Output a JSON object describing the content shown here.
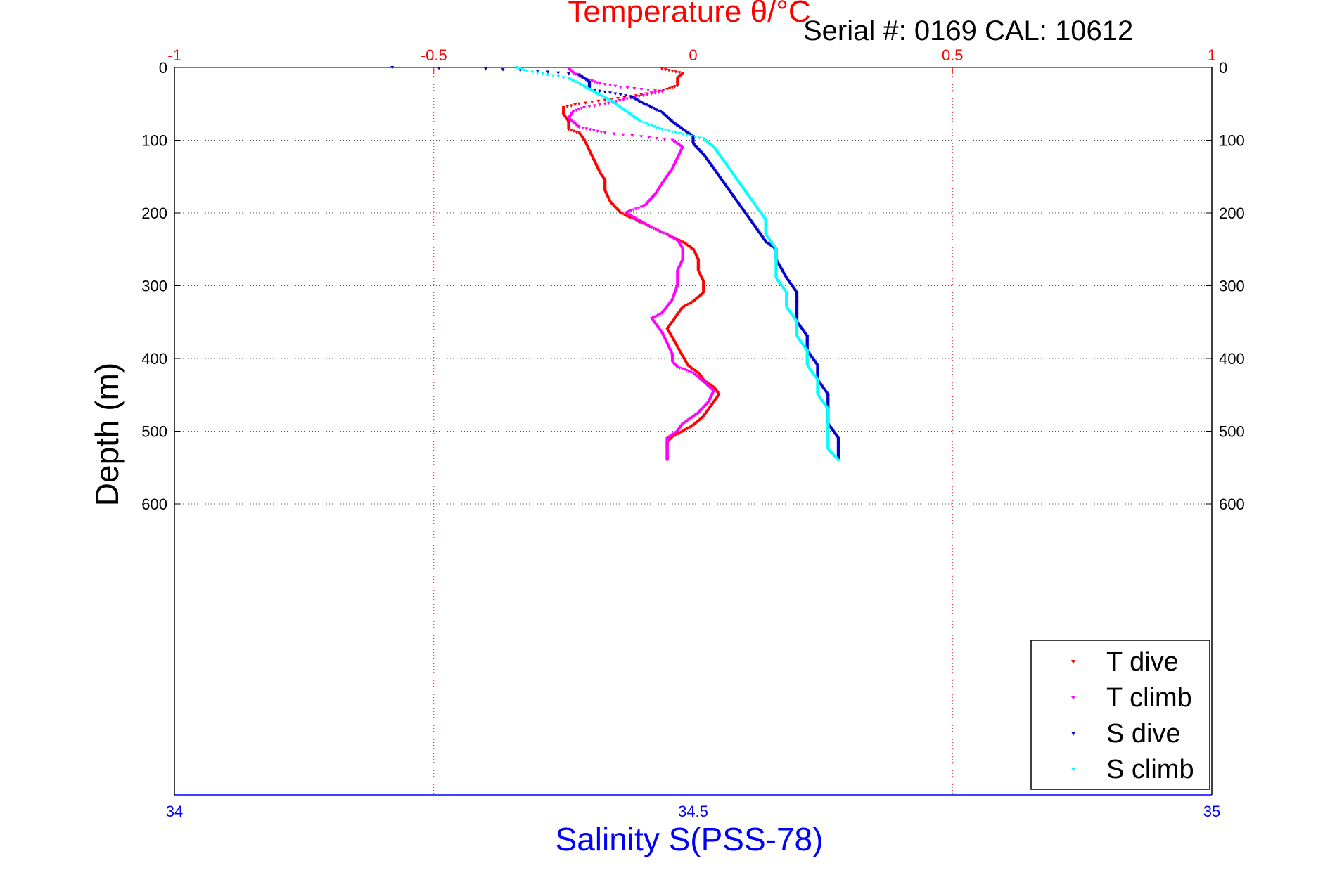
{
  "chart_data": {
    "type": "scatter",
    "title": "Temperature θ/°C",
    "subtitle": "Serial #: 0169 CAL: 10612",
    "xlabel": "Salinity S(PSS-78)",
    "ylabel": "Depth (m)",
    "top_axis": {
      "label": "Temperature θ/°C",
      "range": [
        -1,
        1
      ],
      "ticks": [
        "-1",
        "-0.5",
        "0",
        "0.5",
        "1"
      ],
      "color": "#ff0000"
    },
    "bottom_axis": {
      "label": "Salinity S(PSS-78)",
      "range": [
        34,
        35
      ],
      "ticks": [
        "34",
        "34.5",
        "35"
      ],
      "color": "#0000ff"
    },
    "y_axis": {
      "range": [
        0,
        1000
      ],
      "reversed": true,
      "ticks": [
        "0",
        "100",
        "200",
        "300",
        "400",
        "500",
        "600"
      ]
    },
    "grid": true,
    "legend_position": "bottom-right",
    "series": [
      {
        "name": "T dive",
        "axis": "top",
        "color": "#ff0000",
        "points": [
          [
            -0.06,
            2
          ],
          [
            -0.04,
            5
          ],
          [
            -0.02,
            8
          ],
          [
            -0.03,
            15
          ],
          [
            -0.03,
            25
          ],
          [
            -0.05,
            30
          ],
          [
            -0.08,
            35
          ],
          [
            -0.12,
            40
          ],
          [
            -0.17,
            45
          ],
          [
            -0.22,
            50
          ],
          [
            -0.25,
            55
          ],
          [
            -0.25,
            65
          ],
          [
            -0.24,
            75
          ],
          [
            -0.24,
            85
          ],
          [
            -0.22,
            90
          ],
          [
            -0.21,
            100
          ],
          [
            -0.2,
            115
          ],
          [
            -0.19,
            130
          ],
          [
            -0.18,
            145
          ],
          [
            -0.17,
            155
          ],
          [
            -0.17,
            170
          ],
          [
            -0.16,
            185
          ],
          [
            -0.14,
            200
          ],
          [
            -0.11,
            210
          ],
          [
            -0.08,
            220
          ],
          [
            -0.05,
            230
          ],
          [
            -0.02,
            240
          ],
          [
            0,
            250
          ],
          [
            0.01,
            265
          ],
          [
            0.01,
            280
          ],
          [
            0.02,
            295
          ],
          [
            0.02,
            310
          ],
          [
            0,
            322
          ],
          [
            -0.02,
            330
          ],
          [
            -0.03,
            340
          ],
          [
            -0.04,
            350
          ],
          [
            -0.05,
            360
          ],
          [
            -0.04,
            372
          ],
          [
            -0.03,
            385
          ],
          [
            -0.02,
            398
          ],
          [
            -0.01,
            410
          ],
          [
            0.01,
            420
          ],
          [
            0.02,
            430
          ],
          [
            0.04,
            440
          ],
          [
            0.05,
            450
          ],
          [
            0.04,
            460
          ],
          [
            0.03,
            470
          ],
          [
            0.02,
            480
          ],
          [
            0,
            492
          ],
          [
            -0.02,
            500
          ],
          [
            -0.04,
            508
          ],
          [
            -0.05,
            515
          ],
          [
            -0.05,
            525
          ],
          [
            -0.05,
            540
          ]
        ]
      },
      {
        "name": "T climb",
        "axis": "top",
        "color": "#ff00ff",
        "points": [
          [
            -0.24,
            2
          ],
          [
            -0.23,
            8
          ],
          [
            -0.21,
            15
          ],
          [
            -0.18,
            22
          ],
          [
            -0.14,
            27
          ],
          [
            -0.1,
            30
          ],
          [
            -0.06,
            33
          ],
          [
            -0.08,
            36
          ],
          [
            -0.12,
            42
          ],
          [
            -0.17,
            50
          ],
          [
            -0.21,
            55
          ],
          [
            -0.23,
            60
          ],
          [
            -0.24,
            70
          ],
          [
            -0.22,
            82
          ],
          [
            -0.17,
            90
          ],
          [
            -0.1,
            95
          ],
          [
            -0.04,
            100
          ],
          [
            -0.02,
            110
          ],
          [
            -0.03,
            125
          ],
          [
            -0.04,
            140
          ],
          [
            -0.05,
            150
          ],
          [
            -0.06,
            160
          ],
          [
            -0.07,
            172
          ],
          [
            -0.08,
            180
          ],
          [
            -0.09,
            188
          ],
          [
            -0.1,
            192
          ],
          [
            -0.12,
            197
          ],
          [
            -0.13,
            200
          ],
          [
            -0.11,
            208
          ],
          [
            -0.08,
            220
          ],
          [
            -0.05,
            230
          ],
          [
            -0.03,
            238
          ],
          [
            -0.02,
            250
          ],
          [
            -0.02,
            265
          ],
          [
            -0.03,
            280
          ],
          [
            -0.03,
            300
          ],
          [
            -0.04,
            320
          ],
          [
            -0.06,
            338
          ],
          [
            -0.08,
            345
          ],
          [
            -0.07,
            355
          ],
          [
            -0.06,
            365
          ],
          [
            -0.05,
            380
          ],
          [
            -0.04,
            395
          ],
          [
            -0.04,
            405
          ],
          [
            -0.03,
            412
          ],
          [
            0,
            420
          ],
          [
            0.02,
            432
          ],
          [
            0.04,
            445
          ],
          [
            0.03,
            460
          ],
          [
            0.01,
            475
          ],
          [
            -0.02,
            490
          ],
          [
            -0.03,
            500
          ],
          [
            -0.05,
            510
          ],
          [
            -0.05,
            525
          ],
          [
            -0.05,
            540
          ]
        ]
      },
      {
        "name": "S dive",
        "axis": "bottom",
        "color": "#0000cc",
        "points": [
          [
            34.21,
            0
          ],
          [
            34.3,
            2
          ],
          [
            34.35,
            5
          ],
          [
            34.39,
            10
          ],
          [
            34.4,
            20
          ],
          [
            34.4,
            30
          ],
          [
            34.42,
            35
          ],
          [
            34.44,
            40
          ],
          [
            34.45,
            48
          ],
          [
            34.46,
            55
          ],
          [
            34.47,
            62
          ],
          [
            34.48,
            75
          ],
          [
            34.49,
            85
          ],
          [
            34.5,
            95
          ],
          [
            34.5,
            105
          ],
          [
            34.51,
            120
          ],
          [
            34.52,
            140
          ],
          [
            34.53,
            160
          ],
          [
            34.54,
            180
          ],
          [
            34.55,
            200
          ],
          [
            34.56,
            220
          ],
          [
            34.57,
            240
          ],
          [
            34.58,
            250
          ],
          [
            34.58,
            265
          ],
          [
            34.59,
            290
          ],
          [
            34.6,
            310
          ],
          [
            34.6,
            330
          ],
          [
            34.6,
            350
          ],
          [
            34.61,
            370
          ],
          [
            34.61,
            390
          ],
          [
            34.62,
            410
          ],
          [
            34.62,
            430
          ],
          [
            34.63,
            450
          ],
          [
            34.63,
            470
          ],
          [
            34.63,
            490
          ],
          [
            34.64,
            510
          ],
          [
            34.64,
            525
          ],
          [
            34.64,
            540
          ]
        ]
      },
      {
        "name": "S climb",
        "axis": "bottom",
        "color": "#00ffff",
        "points": [
          [
            34.33,
            0
          ],
          [
            34.34,
            5
          ],
          [
            34.36,
            10
          ],
          [
            34.38,
            15
          ],
          [
            34.39,
            22
          ],
          [
            34.4,
            30
          ],
          [
            34.41,
            38
          ],
          [
            34.42,
            45
          ],
          [
            34.43,
            55
          ],
          [
            34.44,
            65
          ],
          [
            34.45,
            75
          ],
          [
            34.47,
            85
          ],
          [
            34.49,
            92
          ],
          [
            34.51,
            98
          ],
          [
            34.52,
            110
          ],
          [
            34.53,
            130
          ],
          [
            34.54,
            150
          ],
          [
            34.55,
            170
          ],
          [
            34.56,
            190
          ],
          [
            34.57,
            210
          ],
          [
            34.57,
            230
          ],
          [
            34.58,
            250
          ],
          [
            34.58,
            270
          ],
          [
            34.58,
            290
          ],
          [
            34.59,
            310
          ],
          [
            34.59,
            330
          ],
          [
            34.6,
            350
          ],
          [
            34.6,
            370
          ],
          [
            34.61,
            390
          ],
          [
            34.61,
            410
          ],
          [
            34.62,
            430
          ],
          [
            34.62,
            450
          ],
          [
            34.63,
            470
          ],
          [
            34.63,
            490
          ],
          [
            34.63,
            510
          ],
          [
            34.63,
            525
          ],
          [
            34.64,
            540
          ]
        ]
      }
    ]
  }
}
